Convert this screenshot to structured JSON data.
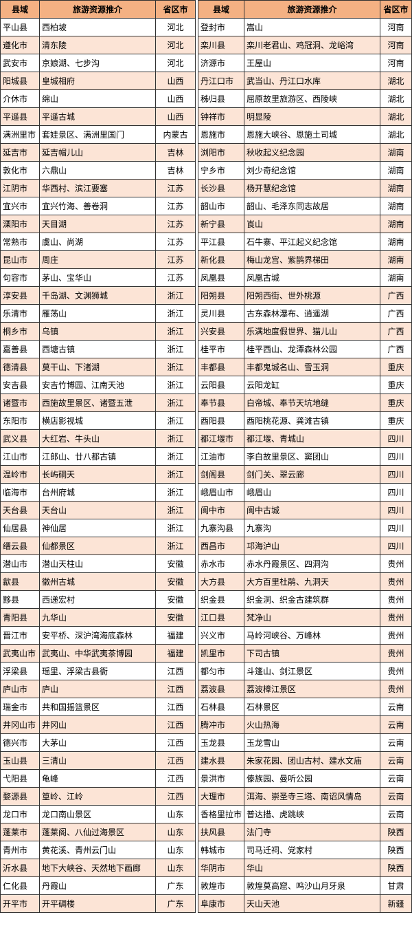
{
  "tables": [
    {
      "header": [
        "县域",
        "旅游资源推介",
        "省区市"
      ],
      "rows": [
        [
          "平山县",
          "西柏坡",
          "河北"
        ],
        [
          "遵化市",
          "清东陵",
          "河北"
        ],
        [
          "武安市",
          "京娘湖、七步沟",
          "河北"
        ],
        [
          "阳城县",
          "皇城相府",
          "山西"
        ],
        [
          "介休市",
          "绵山",
          "山西"
        ],
        [
          "平遥县",
          "平遥古城",
          "山西"
        ],
        [
          "满洲里市",
          "套娃景区、满洲里国门",
          "内蒙古"
        ],
        [
          "延吉市",
          "延吉帽儿山",
          "吉林"
        ],
        [
          "敦化市",
          "六鼎山",
          "吉林"
        ],
        [
          "江阴市",
          "华西村、滨江要塞",
          "江苏"
        ],
        [
          "宜兴市",
          "宜兴竹海、善卷洞",
          "江苏"
        ],
        [
          "溧阳市",
          "天目湖",
          "江苏"
        ],
        [
          "常熟市",
          "虞山、尚湖",
          "江苏"
        ],
        [
          "昆山市",
          "周庄",
          "江苏"
        ],
        [
          "句容市",
          "茅山、宝华山",
          "江苏"
        ],
        [
          "淳安县",
          "千岛湖、文渊狮城",
          "浙江"
        ],
        [
          "乐清市",
          "雁荡山",
          "浙江"
        ],
        [
          "桐乡市",
          "乌镇",
          "浙江"
        ],
        [
          "嘉善县",
          "西塘古镇",
          "浙江"
        ],
        [
          "德清县",
          "莫干山、下渚湖",
          "浙江"
        ],
        [
          "安吉县",
          "安吉竹博园、江南天池",
          "浙江"
        ],
        [
          "诸暨市",
          "西施故里景区、诸暨五泄",
          "浙江"
        ],
        [
          "东阳市",
          "横店影视城",
          "浙江"
        ],
        [
          "武义县",
          "大红岩、牛头山",
          "浙江"
        ],
        [
          "江山市",
          "江郎山、廿八都古镇",
          "浙江"
        ],
        [
          "温岭市",
          "长屿硐天",
          "浙江"
        ],
        [
          "临海市",
          "台州府城",
          "浙江"
        ],
        [
          "天台县",
          "天台山",
          "浙江"
        ],
        [
          "仙居县",
          "神仙居",
          "浙江"
        ],
        [
          "缙云县",
          "仙都景区",
          "浙江"
        ],
        [
          "潜山市",
          "潜山天柱山",
          "安徽"
        ],
        [
          "歙县",
          "徽州古城",
          "安徽"
        ],
        [
          "黟县",
          "西递宏村",
          "安徽"
        ],
        [
          "青阳县",
          "九华山",
          "安徽"
        ],
        [
          "晋江市",
          "安平桥、深沪湾海底森林",
          "福建"
        ],
        [
          "武夷山市",
          "武夷山、中华武夷茶博园",
          "福建"
        ],
        [
          "浮梁县",
          "瑶里、浮梁古县衙",
          "江西"
        ],
        [
          "庐山市",
          "庐山",
          "江西"
        ],
        [
          "瑞金市",
          "共和国摇篮景区",
          "江西"
        ],
        [
          "井冈山市",
          "井冈山",
          "江西"
        ],
        [
          "德兴市",
          "大茅山",
          "江西"
        ],
        [
          "玉山县",
          "三清山",
          "江西"
        ],
        [
          "弋阳县",
          "龟峰",
          "江西"
        ],
        [
          "婺源县",
          "篁岭、江岭",
          "江西"
        ],
        [
          "龙口市",
          "龙口南山景区",
          "山东"
        ],
        [
          "蓬莱市",
          "蓬莱阁、八仙过海景区",
          "山东"
        ],
        [
          "青州市",
          "黄花溪、青州云门山",
          "山东"
        ],
        [
          "沂水县",
          "地下大峡谷、天然地下画廊",
          "山东"
        ],
        [
          "仁化县",
          "丹霞山",
          "广东"
        ],
        [
          "开平市",
          "开平碉楼",
          "广东"
        ]
      ]
    },
    {
      "header": [
        "县域",
        "旅游资源推介",
        "省区市"
      ],
      "rows": [
        [
          "登封市",
          "嵩山",
          "河南"
        ],
        [
          "栾川县",
          "栾川老君山、鸡冠洞、龙峪湾",
          "河南"
        ],
        [
          "济源市",
          "王屋山",
          "河南"
        ],
        [
          "丹江口市",
          "武当山、丹江口水库",
          "湖北"
        ],
        [
          "秭归县",
          "屈原故里旅游区、西陵峡",
          "湖北"
        ],
        [
          "钟祥市",
          "明显陵",
          "湖北"
        ],
        [
          "恩施市",
          "恩施大峡谷、恩施土司城",
          "湖北"
        ],
        [
          "浏阳市",
          "秋收起义纪念园",
          "湖南"
        ],
        [
          "宁乡市",
          "刘少奇纪念馆",
          "湖南"
        ],
        [
          "长沙县",
          "杨开慧纪念馆",
          "湖南"
        ],
        [
          "韶山市",
          "韶山、毛泽东同志故居",
          "湖南"
        ],
        [
          "新宁县",
          "崀山",
          "湖南"
        ],
        [
          "平江县",
          "石牛寨、平江起义纪念馆",
          "湖南"
        ],
        [
          "新化县",
          "梅山龙宫、紫鹊界梯田",
          "湖南"
        ],
        [
          "凤凰县",
          "凤凰古城",
          "湖南"
        ],
        [
          "阳朔县",
          "阳朔西街、世外桃源",
          "广西"
        ],
        [
          "灵川县",
          "古东森林瀑布、逍遥湖",
          "广西"
        ],
        [
          "兴安县",
          "乐满地度假世界、猫儿山",
          "广西"
        ],
        [
          "桂平市",
          "桂平西山、龙潭森林公园",
          "广西"
        ],
        [
          "丰都县",
          "丰都鬼城名山、雪玉洞",
          "重庆"
        ],
        [
          "云阳县",
          "云阳龙缸",
          "重庆"
        ],
        [
          "奉节县",
          "白帝城、奉节天坑地缝",
          "重庆"
        ],
        [
          "酉阳县",
          "酉阳桃花源、龚滩古镇",
          "重庆"
        ],
        [
          "都江堰市",
          "都江堰、青城山",
          "四川"
        ],
        [
          "江油市",
          "李白故里景区、窦团山",
          "四川"
        ],
        [
          "剑阁县",
          "剑门关、翠云廊",
          "四川"
        ],
        [
          "峨眉山市",
          "峨眉山",
          "四川"
        ],
        [
          "阆中市",
          "阆中古城",
          "四川"
        ],
        [
          "九寨沟县",
          "九寨沟",
          "四川"
        ],
        [
          "西昌市",
          "邛海泸山",
          "四川"
        ],
        [
          "赤水市",
          "赤水丹霞景区、四洞沟",
          "贵州"
        ],
        [
          "大方县",
          "大方百里杜鹃、九洞天",
          "贵州"
        ],
        [
          "织金县",
          "织金洞、织金古建筑群",
          "贵州"
        ],
        [
          "江口县",
          "梵净山",
          "贵州"
        ],
        [
          "兴义市",
          "马岭河峡谷、万峰林",
          "贵州"
        ],
        [
          "凯里市",
          "下司古镇",
          "贵州"
        ],
        [
          "都匀市",
          "斗篷山、剑江景区",
          "贵州"
        ],
        [
          "荔波县",
          "荔波樟江景区",
          "贵州"
        ],
        [
          "石林县",
          "石林景区",
          "云南"
        ],
        [
          "腾冲市",
          "火山热海",
          "云南"
        ],
        [
          "玉龙县",
          "玉龙雪山",
          "云南"
        ],
        [
          "建水县",
          "朱家花园、团山古村、建水文庙",
          "云南"
        ],
        [
          "景洪市",
          "傣族园、曼听公园",
          "云南"
        ],
        [
          "大理市",
          "洱海、崇圣寺三塔、南诏风情岛",
          "云南"
        ],
        [
          "香格里拉市",
          "普达措、虎跳峡",
          "云南"
        ],
        [
          "扶风县",
          "法门寺",
          "陕西"
        ],
        [
          "韩城市",
          "司马迁祠、党家村",
          "陕西"
        ],
        [
          "华阴市",
          "华山",
          "陕西"
        ],
        [
          "敦煌市",
          "敦煌莫高窟、鸣沙山月牙泉",
          "甘肃"
        ],
        [
          "阜康市",
          "天山天池",
          "新疆"
        ]
      ]
    }
  ]
}
